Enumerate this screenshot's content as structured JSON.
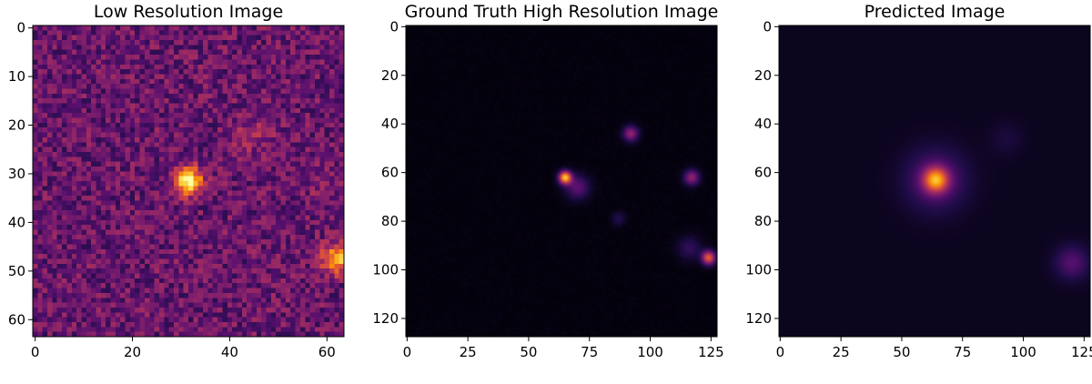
{
  "chart_data": [
    {
      "type": "heatmap",
      "title": "Low Resolution Image",
      "colormap": "inferno",
      "image_size": [
        64,
        64
      ],
      "x_ticks": [
        0,
        20,
        40,
        60
      ],
      "y_ticks": [
        0,
        10,
        20,
        30,
        40,
        50,
        60
      ],
      "xlim": [
        -0.5,
        63.5
      ],
      "ylim": [
        63.5,
        -0.5
      ],
      "background_level": 0.3,
      "noise_level": 0.14,
      "sources": [
        {
          "x": 31.5,
          "y": 31.5,
          "peak": 0.72,
          "sigma": 2.0
        },
        {
          "x": 62,
          "y": 47.5,
          "peak": 0.55,
          "sigma": 2.2
        },
        {
          "x": 45,
          "y": 22,
          "peak": 0.13,
          "sigma": 3.0
        },
        {
          "x": 59,
          "y": 32,
          "peak": 0.08,
          "sigma": 2.5
        }
      ]
    },
    {
      "type": "heatmap",
      "title": "Ground Truth High Resolution Image",
      "colormap": "inferno",
      "image_size": [
        128,
        128
      ],
      "x_ticks": [
        0,
        25,
        50,
        75,
        100,
        125
      ],
      "y_ticks": [
        0,
        20,
        40,
        60,
        80,
        100,
        120
      ],
      "xlim": [
        -0.5,
        127.5
      ],
      "ylim": [
        127.5,
        -0.5
      ],
      "background_level": 0.02,
      "noise_level": 0.01,
      "sources": [
        {
          "x": 65,
          "y": 62,
          "peak": 0.85,
          "sigma": 1.8
        },
        {
          "x": 70,
          "y": 66,
          "peak": 0.25,
          "sigma": 3.5
        },
        {
          "x": 92,
          "y": 44,
          "peak": 0.38,
          "sigma": 2.2
        },
        {
          "x": 117,
          "y": 62,
          "peak": 0.38,
          "sigma": 2.2
        },
        {
          "x": 87,
          "y": 79,
          "peak": 0.12,
          "sigma": 2.0
        },
        {
          "x": 124,
          "y": 95,
          "peak": 0.62,
          "sigma": 2.0
        },
        {
          "x": 116,
          "y": 91,
          "peak": 0.15,
          "sigma": 3.5
        }
      ]
    },
    {
      "type": "heatmap",
      "title": "Predicted Image",
      "colormap": "inferno",
      "image_size": [
        128,
        128
      ],
      "x_ticks": [
        0,
        25,
        50,
        75,
        100,
        125
      ],
      "y_ticks": [
        0,
        20,
        40,
        60,
        80,
        100,
        120
      ],
      "xlim": [
        -0.5,
        127.5
      ],
      "ylim": [
        127.5,
        -0.5
      ],
      "background_level": 0.05,
      "noise_level": 0.0,
      "sources": [
        {
          "x": 64,
          "y": 63,
          "peak": 0.62,
          "sigma": 3.5
        },
        {
          "x": 64,
          "y": 63,
          "peak": 0.22,
          "sigma": 9.0
        },
        {
          "x": 93,
          "y": 46,
          "peak": 0.06,
          "sigma": 5.0
        },
        {
          "x": 120,
          "y": 97,
          "peak": 0.2,
          "sigma": 5.0
        }
      ]
    }
  ]
}
